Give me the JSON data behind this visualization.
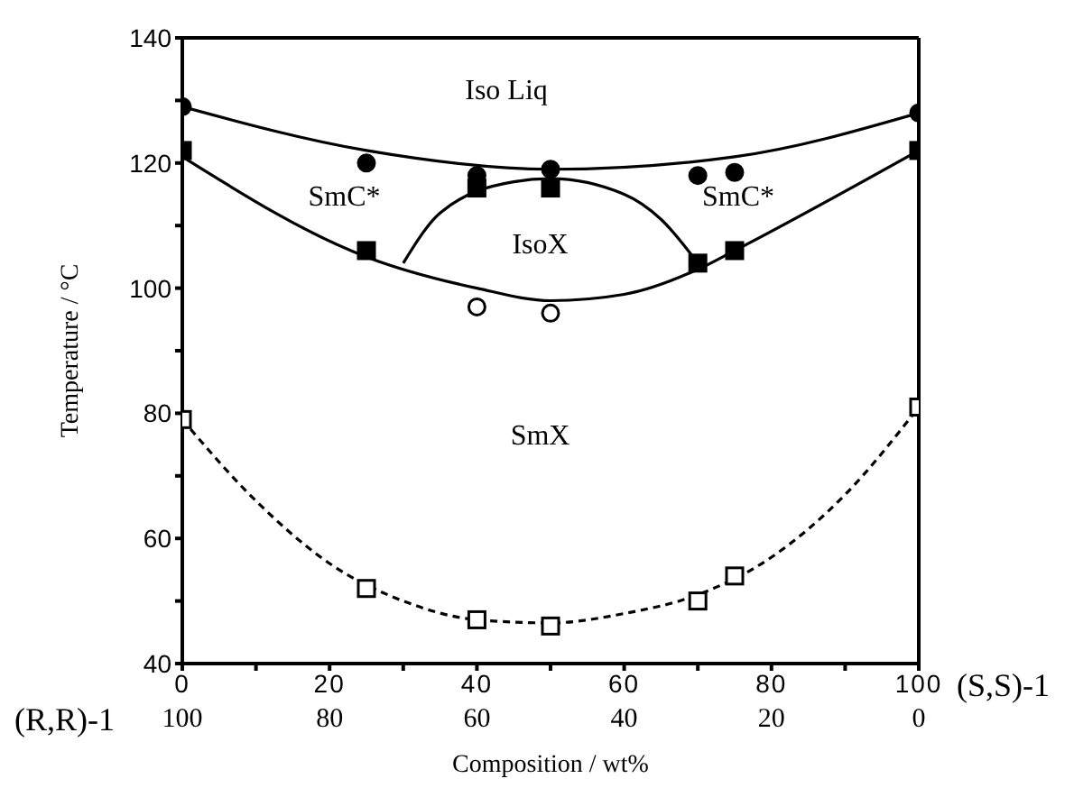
{
  "chart_data": {
    "type": "scatter",
    "xlabel": "Composition / wt%",
    "ylabel": "Temperature / °C",
    "xlim": [
      0,
      100
    ],
    "xticks": [
      0,
      {
        "value": 10,
        "label": null
      },
      20,
      {
        "value": 30,
        "label": null
      },
      40,
      {
        "value": 50,
        "label": null
      },
      60,
      {
        "value": 70,
        "label": null
      },
      80,
      {
        "value": 90,
        "label": null
      },
      100
    ],
    "x2lim": [
      100,
      0
    ],
    "x2ticks": [
      100,
      80,
      60,
      40,
      20,
      0
    ],
    "ylim": [
      40,
      140
    ],
    "yticks": [
      40,
      {
        "value": 50,
        "label": null
      },
      60,
      {
        "value": 70,
        "label": null
      },
      80,
      {
        "value": 90,
        "label": null
      },
      100,
      {
        "value": 110,
        "label": null
      },
      120,
      {
        "value": 130,
        "label": null
      },
      140
    ],
    "grid": false,
    "legend": false,
    "series": [
      {
        "marker": "circle",
        "color": "#000000",
        "x": [
          0,
          25,
          40,
          50,
          70,
          75,
          100
        ],
        "values": [
          129,
          120,
          118,
          119,
          118,
          118.5,
          128
        ]
      },
      {
        "marker": "square",
        "color": "#000000",
        "x": [
          0,
          25,
          40,
          50,
          70,
          75,
          100
        ],
        "values": [
          122,
          106,
          116,
          116,
          104,
          106,
          122
        ]
      },
      {
        "marker": "circle",
        "color": "#ffffff",
        "x": [
          40,
          50
        ],
        "values": [
          97,
          96
        ]
      },
      {
        "marker": "square",
        "color": "#ffffff",
        "x": [
          0,
          25,
          40,
          50,
          70,
          75,
          100
        ],
        "values": [
          79,
          52,
          47,
          46,
          50,
          54,
          81
        ]
      },
      {
        "type": "line",
        "line_style": "solid",
        "color": "#000000",
        "x": [
          0,
          25,
          50,
          75,
          100
        ],
        "values": [
          129,
          122,
          119,
          121,
          128
        ]
      },
      {
        "type": "line",
        "line_style": "solid",
        "color": "#000000",
        "x": [
          0,
          25,
          40,
          50,
          60,
          70,
          75,
          100
        ],
        "values": [
          121,
          105,
          100,
          98,
          99,
          103,
          106,
          122
        ]
      },
      {
        "type": "line",
        "line_style": "solid",
        "color": "#000000",
        "x": [
          30,
          35,
          45,
          50,
          60,
          65,
          70
        ],
        "values": [
          104,
          112,
          117,
          117.5,
          115,
          111,
          104
        ]
      },
      {
        "type": "line",
        "line_style": "dashed",
        "color": "#000000",
        "x": [
          0,
          10,
          20,
          30,
          40,
          50,
          60,
          70,
          80,
          90,
          100
        ],
        "values": [
          79,
          66,
          56,
          50,
          47,
          46.5,
          48,
          51,
          57,
          67,
          81
        ]
      }
    ],
    "annotations": [
      "(S,S)-1",
      "(R,R)-1",
      "Iso Liq",
      "SmC*",
      "SmC*",
      "IsoX",
      "SmX"
    ]
  }
}
